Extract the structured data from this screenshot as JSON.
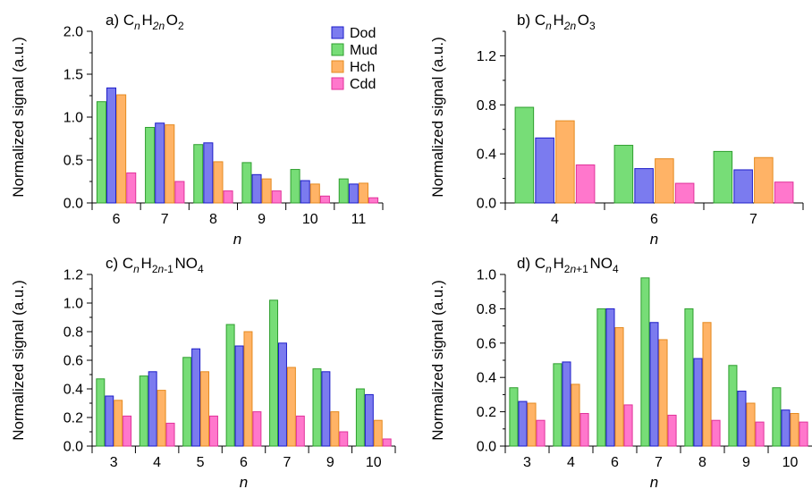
{
  "chart_data": [
    {
      "type": "bar",
      "title": {
        "label": "a)",
        "formula": [
          "C",
          {
            "sub": "n",
            "italic": true
          },
          "H",
          {
            "sub": "2n",
            "italic": true
          },
          "O",
          {
            "sub": "2"
          }
        ]
      },
      "xlabel": "n",
      "ylabel": "Normalized signal (a.u.)",
      "ylim": [
        0,
        2.0
      ],
      "yticks": [
        "0.0",
        "0.5",
        "1.0",
        "1.5",
        "2.0"
      ],
      "categories": [
        "6",
        "7",
        "8",
        "9",
        "10",
        "11"
      ],
      "series": [
        {
          "name": "Mud",
          "values": [
            1.18,
            0.88,
            0.68,
            0.47,
            0.39,
            0.28
          ]
        },
        {
          "name": "Dod",
          "values": [
            1.34,
            0.93,
            0.7,
            0.33,
            0.26,
            0.22
          ]
        },
        {
          "name": "Hch",
          "values": [
            1.26,
            0.91,
            0.48,
            0.28,
            0.22,
            0.23
          ]
        },
        {
          "name": "Cdd",
          "values": [
            0.35,
            0.25,
            0.14,
            0.14,
            0.08,
            0.06
          ]
        }
      ],
      "legend": {
        "position": "top-right",
        "order": [
          "Dod",
          "Mud",
          "Hch",
          "Cdd"
        ]
      }
    },
    {
      "type": "bar",
      "title": {
        "label": "b)",
        "formula": [
          "C",
          {
            "sub": "n",
            "italic": true
          },
          "H",
          {
            "sub": "2n",
            "italic": true
          },
          "O",
          {
            "sub": "3"
          }
        ]
      },
      "xlabel": "n",
      "ylabel": "Normalized signal (a.u.)",
      "ylim": [
        0,
        1.4
      ],
      "yticks": [
        "0.0",
        "0.4",
        "0.8",
        "1.2"
      ],
      "categories": [
        "4",
        "6",
        "7"
      ],
      "series": [
        {
          "name": "Mud",
          "values": [
            0.78,
            0.47,
            0.42
          ]
        },
        {
          "name": "Dod",
          "values": [
            0.53,
            0.28,
            0.27
          ]
        },
        {
          "name": "Hch",
          "values": [
            0.67,
            0.36,
            0.37
          ]
        },
        {
          "name": "Cdd",
          "values": [
            0.31,
            0.16,
            0.17
          ]
        }
      ]
    },
    {
      "type": "bar",
      "title": {
        "label": "c)",
        "formula": [
          "C",
          {
            "sub": "n",
            "italic": true
          },
          "H",
          {
            "sub": "2",
            "parts": [
              {
                "t": "2"
              },
              {
                "t": "n",
                "italic": true
              },
              {
                "t": "-1"
              }
            ]
          },
          "NO",
          {
            "sub": "4"
          }
        ]
      },
      "xlabel": "n",
      "ylabel": "Normalized signal (a.u.)",
      "ylim": [
        0,
        1.2
      ],
      "yticks": [
        "0.0",
        "0.2",
        "0.4",
        "0.6",
        "0.8",
        "1.0",
        "1.2"
      ],
      "categories": [
        "3",
        "4",
        "5",
        "6",
        "7",
        "9",
        "10"
      ],
      "series": [
        {
          "name": "Mud",
          "values": [
            0.47,
            0.49,
            0.62,
            0.85,
            1.02,
            0.54,
            0.4
          ]
        },
        {
          "name": "Dod",
          "values": [
            0.35,
            0.52,
            0.68,
            0.7,
            0.72,
            0.52,
            0.36
          ]
        },
        {
          "name": "Hch",
          "values": [
            0.32,
            0.39,
            0.52,
            0.8,
            0.55,
            0.24,
            0.18
          ]
        },
        {
          "name": "Cdd",
          "values": [
            0.21,
            0.16,
            0.21,
            0.24,
            0.21,
            0.1,
            0.05
          ]
        }
      ]
    },
    {
      "type": "bar",
      "title": {
        "label": "d)",
        "formula": [
          "C",
          {
            "sub": "n",
            "italic": true
          },
          "H",
          {
            "sub": "2",
            "parts": [
              {
                "t": "2"
              },
              {
                "t": "n",
                "italic": true
              },
              {
                "t": "+1"
              }
            ]
          },
          "NO",
          {
            "sub": "4"
          }
        ]
      },
      "xlabel": "n",
      "ylabel": "Normalized signal (a.u.)",
      "ylim": [
        0,
        1.0
      ],
      "yticks": [
        "0.0",
        "0.2",
        "0.4",
        "0.6",
        "0.8",
        "1.0"
      ],
      "categories": [
        "3",
        "4",
        "6",
        "7",
        "8",
        "9",
        "10"
      ],
      "series": [
        {
          "name": "Mud",
          "values": [
            0.34,
            0.48,
            0.8,
            0.98,
            0.8,
            0.47,
            0.34
          ]
        },
        {
          "name": "Dod",
          "values": [
            0.26,
            0.49,
            0.8,
            0.72,
            0.51,
            0.32,
            0.21
          ]
        },
        {
          "name": "Hch",
          "values": [
            0.25,
            0.36,
            0.69,
            0.62,
            0.72,
            0.25,
            0.19
          ]
        },
        {
          "name": "Cdd",
          "values": [
            0.15,
            0.19,
            0.24,
            0.18,
            0.15,
            0.14,
            0.14
          ]
        }
      ]
    }
  ],
  "colors": {
    "Mud": {
      "fill": "#77dd77",
      "stroke": "#2e9e2e"
    },
    "Dod": {
      "fill": "#7b7bef",
      "stroke": "#1c1cc8"
    },
    "Hch": {
      "fill": "#ffb366",
      "stroke": "#e58a1f"
    },
    "Cdd": {
      "fill": "#ff77cc",
      "stroke": "#e0329a"
    }
  }
}
